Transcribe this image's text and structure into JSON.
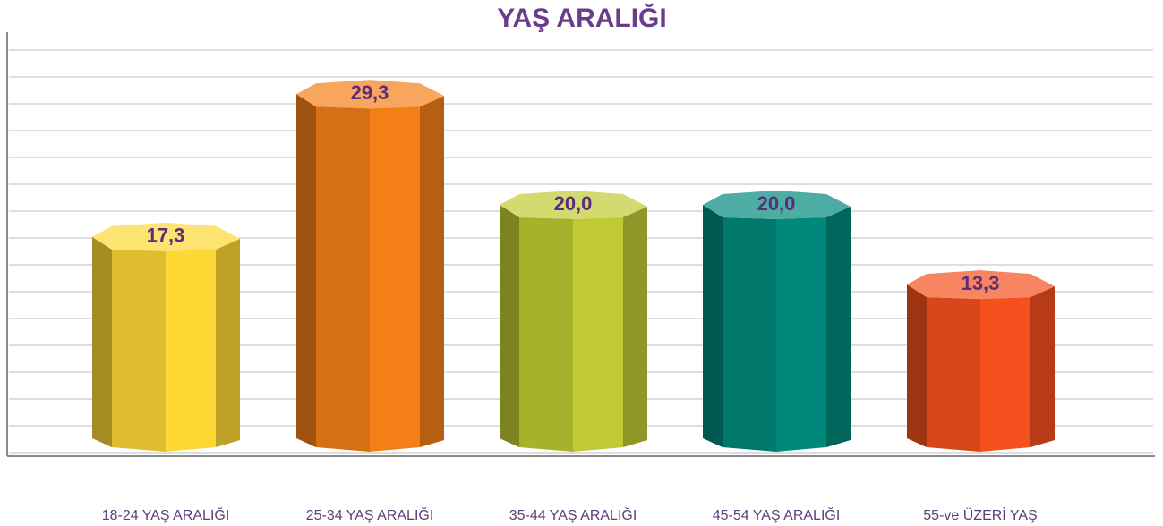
{
  "chart_data": {
    "type": "bar",
    "title": "YAŞ ARALIĞI",
    "categories": [
      "18-24 YAŞ ARALIĞI",
      "25-34 YAŞ ARALIĞI",
      "35-44 YAŞ ARALIĞI",
      "45-54 YAŞ ARALIĞI",
      "55-ve ÜZERİ YAŞ"
    ],
    "values": [
      17.3,
      29.3,
      20.0,
      20.0,
      13.3
    ],
    "value_labels": [
      "17,3",
      "29,3",
      "20,0",
      "20,0",
      "13,3"
    ],
    "colors": [
      "#fdd835",
      "#f57f17",
      "#c0ca33",
      "#00897b",
      "#f4511e"
    ],
    "ylim": [
      0,
      33
    ],
    "grid": true
  }
}
